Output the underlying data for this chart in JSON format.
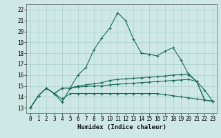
{
  "xlabel": "Humidex (Indice chaleur)",
  "ylabel": "",
  "xlim": [
    -0.5,
    23.5
  ],
  "ylim": [
    12.5,
    22.5
  ],
  "background_color": "#cde8e5",
  "grid_color": "#aacfcc",
  "line_color": "#1a6b5a",
  "xticks": [
    0,
    1,
    2,
    3,
    4,
    5,
    6,
    7,
    8,
    9,
    10,
    11,
    12,
    13,
    14,
    15,
    16,
    17,
    18,
    19,
    20,
    21,
    22,
    23
  ],
  "yticks": [
    13,
    14,
    15,
    16,
    17,
    18,
    19,
    20,
    21,
    22
  ],
  "curve1_y": [
    13.0,
    14.1,
    14.8,
    14.3,
    13.5,
    14.8,
    16.0,
    16.7,
    18.3,
    19.4,
    20.3,
    21.7,
    21.0,
    19.3,
    18.0,
    17.9,
    17.75,
    18.2,
    18.5,
    17.4,
    16.0,
    15.4,
    14.6,
    13.6
  ],
  "curve2_y": [
    13.0,
    14.1,
    14.8,
    14.3,
    14.8,
    14.8,
    15.0,
    15.1,
    15.2,
    15.3,
    15.5,
    15.6,
    15.65,
    15.7,
    15.75,
    15.8,
    15.85,
    15.9,
    16.0,
    16.05,
    16.1,
    15.4,
    13.7,
    13.6
  ],
  "curve3_y": [
    13.0,
    14.1,
    14.8,
    14.3,
    14.8,
    14.8,
    14.9,
    14.95,
    15.0,
    15.0,
    15.1,
    15.15,
    15.2,
    15.25,
    15.3,
    15.35,
    15.4,
    15.45,
    15.5,
    15.55,
    15.6,
    15.4,
    13.7,
    13.6
  ],
  "curve4_y": [
    13.0,
    14.1,
    14.8,
    14.3,
    13.8,
    14.3,
    14.3,
    14.3,
    14.3,
    14.3,
    14.3,
    14.3,
    14.3,
    14.3,
    14.3,
    14.3,
    14.3,
    14.2,
    14.1,
    14.0,
    13.9,
    13.8,
    13.7,
    13.6
  ],
  "marker_size": 2.5,
  "line_width": 0.8,
  "tick_fontsize": 5.5,
  "xlabel_fontsize": 6.5
}
